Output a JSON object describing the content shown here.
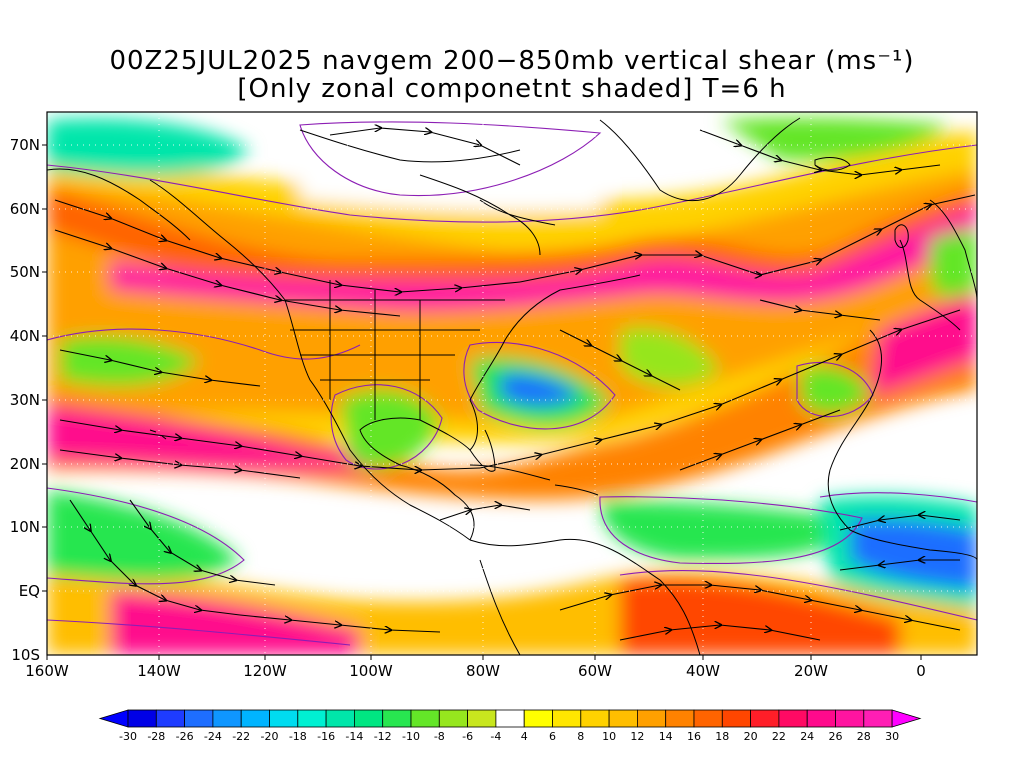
{
  "title_line1": "00Z25JUL2025 navgem 200−850mb vertical shear (ms⁻¹)",
  "title_line2": "[Only zonal componetnt shaded] T=6 h",
  "lat_labels": [
    "70N",
    "60N",
    "50N",
    "40N",
    "30N",
    "20N",
    "10N",
    "EQ",
    "10S"
  ],
  "lon_labels": [
    "160W",
    "140W",
    "120W",
    "100W",
    "80W",
    "60W",
    "40W",
    "20W",
    "0"
  ],
  "colorbar": {
    "labels": [
      "-30",
      "-28",
      "-26",
      "-24",
      "-22",
      "-20",
      "-18",
      "-16",
      "-14",
      "-12",
      "-10",
      "-8",
      "-6",
      "-4",
      "4",
      "6",
      "8",
      "10",
      "12",
      "14",
      "16",
      "18",
      "20",
      "22",
      "24",
      "26",
      "28",
      "30"
    ],
    "colors": [
      "#0000e6",
      "#1e3cff",
      "#1e6eff",
      "#0f96ff",
      "#00b4ff",
      "#00dcf0",
      "#00f0d2",
      "#00e6aa",
      "#00e682",
      "#28e650",
      "#64e628",
      "#96e61e",
      "#c8e61e",
      "#ffffff",
      "#ffff00",
      "#ffe600",
      "#ffd200",
      "#ffbe00",
      "#ffa000",
      "#ff8200",
      "#ff6400",
      "#ff4600",
      "#ff1e28",
      "#ff0a64",
      "#ff0a8c",
      "#ff14a0",
      "#ff1eb4"
    ],
    "under_color": "#0000ff",
    "over_color": "#ff00ff"
  },
  "map_layers": {
    "shading": "zonal component of 200-850mb shear",
    "streamlines": "black",
    "contours": "purple",
    "coastlines": "black"
  }
}
